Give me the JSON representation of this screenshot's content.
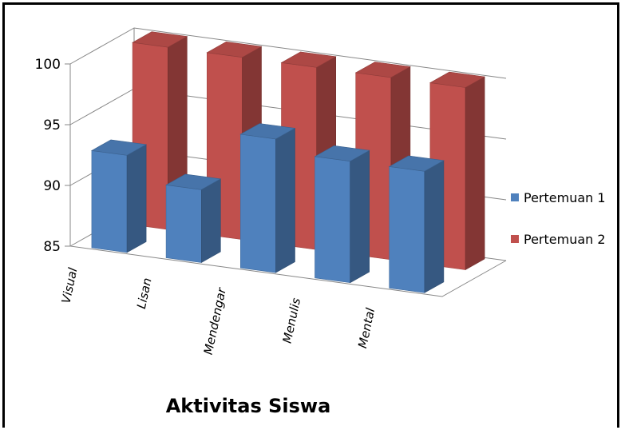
{
  "chart_data": {
    "type": "bar",
    "variant": "3d-column-clustered-depth",
    "categories": [
      "Visual",
      "Lisan",
      "Mendengar",
      "Menulis",
      "Mental"
    ],
    "series": [
      {
        "name": "Pertemuan 1",
        "color": "#4f81bd",
        "values": [
          93,
          91,
          96,
          95,
          95
        ]
      },
      {
        "name": "Pertemuan 2",
        "color": "#c0504d",
        "values": [
          100,
          100,
          100,
          100,
          100
        ]
      }
    ],
    "xlabel": "Aktivitas Siswa",
    "ylabel": "",
    "ylim": [
      85,
      100
    ],
    "yticks": [
      85,
      90,
      95,
      100
    ],
    "grid": true,
    "legend": "right"
  }
}
